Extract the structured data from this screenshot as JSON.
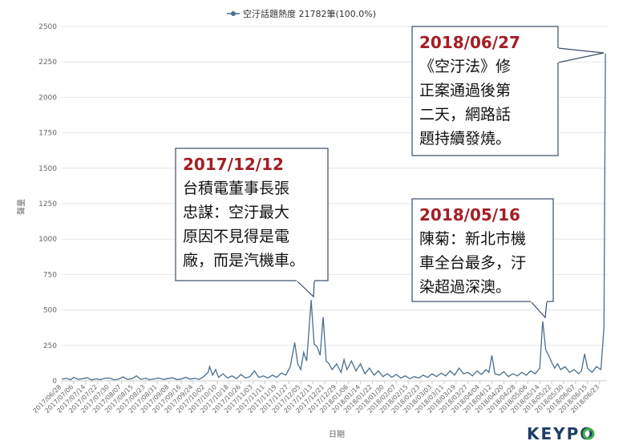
{
  "chart_data": {
    "type": "line",
    "legend": "空汙話題熱度 21782筆(100.0%)",
    "xlabel": "日期",
    "ylabel": "聲量",
    "ylim": [
      0,
      2500
    ],
    "yticks": [
      0,
      250,
      500,
      750,
      1000,
      1250,
      1500,
      1750,
      2000,
      2250,
      2500
    ],
    "grid": true,
    "color": "#4b6e8e",
    "x_range": [
      "2017/06/28",
      "2018/06/28"
    ],
    "x_ticks": [
      "2017/06/28",
      "2017/07/06",
      "2017/07/14",
      "2017/07/22",
      "2017/07/30",
      "2017/08/07",
      "2017/08/15",
      "2017/08/23",
      "2017/08/31",
      "2017/09/08",
      "2017/09/16",
      "2017/09/24",
      "2017/10/02",
      "2017/10/10",
      "2017/10/18",
      "2017/10/26",
      "2017/11/03",
      "2017/11/11",
      "2017/11/19",
      "2017/11/27",
      "2017/12/05",
      "2017/12/13",
      "2017/12/21",
      "2017/12/29",
      "2018/01/06",
      "2018/01/14",
      "2018/01/22",
      "2018/01/30",
      "2018/02/07",
      "2018/02/15",
      "2018/02/23",
      "2018/03/03",
      "2018/03/11",
      "2018/03/19",
      "2018/03/27",
      "2018/04/04",
      "2018/04/12",
      "2018/04/20",
      "2018/04/28",
      "2018/05/06",
      "2018/05/14",
      "2018/05/22",
      "2018/05/30",
      "2018/06/07",
      "2018/06/15",
      "2018/06/23"
    ],
    "points": [
      [
        "2017/06/28",
        12
      ],
      [
        "2017/07/01",
        18
      ],
      [
        "2017/07/04",
        8
      ],
      [
        "2017/07/06",
        25
      ],
      [
        "2017/07/09",
        10
      ],
      [
        "2017/07/12",
        15
      ],
      [
        "2017/07/15",
        22
      ],
      [
        "2017/07/18",
        6
      ],
      [
        "2017/07/21",
        14
      ],
      [
        "2017/07/24",
        9
      ],
      [
        "2017/07/27",
        18
      ],
      [
        "2017/07/30",
        20
      ],
      [
        "2017/08/02",
        8
      ],
      [
        "2017/08/05",
        12
      ],
      [
        "2017/08/08",
        28
      ],
      [
        "2017/08/11",
        10
      ],
      [
        "2017/08/14",
        15
      ],
      [
        "2017/08/17",
        35
      ],
      [
        "2017/08/20",
        10
      ],
      [
        "2017/08/23",
        18
      ],
      [
        "2017/08/26",
        8
      ],
      [
        "2017/08/29",
        14
      ],
      [
        "2017/09/01",
        20
      ],
      [
        "2017/09/04",
        10
      ],
      [
        "2017/09/07",
        16
      ],
      [
        "2017/09/10",
        22
      ],
      [
        "2017/09/13",
        9
      ],
      [
        "2017/09/16",
        13
      ],
      [
        "2017/09/19",
        25
      ],
      [
        "2017/09/22",
        12
      ],
      [
        "2017/09/25",
        18
      ],
      [
        "2017/09/28",
        10
      ],
      [
        "2017/10/01",
        30
      ],
      [
        "2017/10/04",
        60
      ],
      [
        "2017/10/05",
        100
      ],
      [
        "2017/10/07",
        40
      ],
      [
        "2017/10/09",
        80
      ],
      [
        "2017/10/11",
        25
      ],
      [
        "2017/10/14",
        50
      ],
      [
        "2017/10/17",
        20
      ],
      [
        "2017/10/20",
        35
      ],
      [
        "2017/10/23",
        15
      ],
      [
        "2017/10/26",
        45
      ],
      [
        "2017/10/29",
        20
      ],
      [
        "2017/11/01",
        30
      ],
      [
        "2017/11/04",
        70
      ],
      [
        "2017/11/07",
        25
      ],
      [
        "2017/11/10",
        35
      ],
      [
        "2017/11/13",
        20
      ],
      [
        "2017/11/16",
        40
      ],
      [
        "2017/11/19",
        25
      ],
      [
        "2017/11/22",
        55
      ],
      [
        "2017/11/25",
        40
      ],
      [
        "2017/11/28",
        100
      ],
      [
        "2017/12/01",
        270
      ],
      [
        "2017/12/03",
        120
      ],
      [
        "2017/12/05",
        80
      ],
      [
        "2017/12/07",
        200
      ],
      [
        "2017/12/09",
        140
      ],
      [
        "2017/12/12",
        570
      ],
      [
        "2017/12/14",
        260
      ],
      [
        "2017/12/16",
        240
      ],
      [
        "2017/12/18",
        180
      ],
      [
        "2017/12/20",
        450
      ],
      [
        "2017/12/22",
        140
      ],
      [
        "2017/12/24",
        120
      ],
      [
        "2017/12/26",
        80
      ],
      [
        "2017/12/29",
        120
      ],
      [
        "2018/01/01",
        60
      ],
      [
        "2018/01/03",
        150
      ],
      [
        "2018/01/05",
        80
      ],
      [
        "2018/01/08",
        140
      ],
      [
        "2018/01/11",
        70
      ],
      [
        "2018/01/14",
        120
      ],
      [
        "2018/01/17",
        50
      ],
      [
        "2018/01/20",
        90
      ],
      [
        "2018/01/23",
        40
      ],
      [
        "2018/01/26",
        70
      ],
      [
        "2018/01/29",
        30
      ],
      [
        "2018/02/01",
        50
      ],
      [
        "2018/02/04",
        25
      ],
      [
        "2018/02/07",
        45
      ],
      [
        "2018/02/10",
        20
      ],
      [
        "2018/02/13",
        35
      ],
      [
        "2018/02/16",
        15
      ],
      [
        "2018/02/19",
        30
      ],
      [
        "2018/02/22",
        20
      ],
      [
        "2018/02/25",
        40
      ],
      [
        "2018/02/28",
        25
      ],
      [
        "2018/03/03",
        50
      ],
      [
        "2018/03/06",
        30
      ],
      [
        "2018/03/09",
        55
      ],
      [
        "2018/03/12",
        35
      ],
      [
        "2018/03/15",
        70
      ],
      [
        "2018/03/18",
        40
      ],
      [
        "2018/03/21",
        90
      ],
      [
        "2018/03/24",
        50
      ],
      [
        "2018/03/27",
        60
      ],
      [
        "2018/03/30",
        35
      ],
      [
        "2018/04/02",
        70
      ],
      [
        "2018/04/05",
        45
      ],
      [
        "2018/04/08",
        80
      ],
      [
        "2018/04/10",
        60
      ],
      [
        "2018/04/12",
        180
      ],
      [
        "2018/04/14",
        50
      ],
      [
        "2018/04/17",
        40
      ],
      [
        "2018/04/20",
        65
      ],
      [
        "2018/04/23",
        30
      ],
      [
        "2018/04/26",
        50
      ],
      [
        "2018/04/29",
        35
      ],
      [
        "2018/05/02",
        60
      ],
      [
        "2018/05/05",
        40
      ],
      [
        "2018/05/08",
        70
      ],
      [
        "2018/05/11",
        50
      ],
      [
        "2018/05/14",
        90
      ],
      [
        "2018/05/16",
        420
      ],
      [
        "2018/05/18",
        220
      ],
      [
        "2018/05/20",
        180
      ],
      [
        "2018/05/22",
        130
      ],
      [
        "2018/05/24",
        90
      ],
      [
        "2018/05/26",
        120
      ],
      [
        "2018/05/28",
        80
      ],
      [
        "2018/05/31",
        100
      ],
      [
        "2018/06/03",
        60
      ],
      [
        "2018/06/06",
        80
      ],
      [
        "2018/06/09",
        50
      ],
      [
        "2018/06/11",
        70
      ],
      [
        "2018/06/13",
        190
      ],
      [
        "2018/06/15",
        90
      ],
      [
        "2018/06/18",
        60
      ],
      [
        "2018/06/21",
        100
      ],
      [
        "2018/06/24",
        80
      ],
      [
        "2018/06/26",
        380
      ],
      [
        "2018/06/27",
        2310
      ]
    ],
    "annotations": [
      {
        "date": "2017/12/12",
        "lines": [
          "台積電董事長張",
          "忠謀：空汙最大",
          "原因不見得是電",
          "廠，而是汽機車。"
        ]
      },
      {
        "date": "2018/05/16",
        "lines": [
          "陳菊：新北市機",
          "車全台最多，汙",
          "染超過深澳。"
        ]
      },
      {
        "date": "2018/06/27",
        "lines": [
          "《空汙法》修",
          "正案通過後第",
          "二天，網路話",
          "題持續發燒。"
        ]
      }
    ]
  },
  "brand": {
    "text": "KEYPO"
  }
}
